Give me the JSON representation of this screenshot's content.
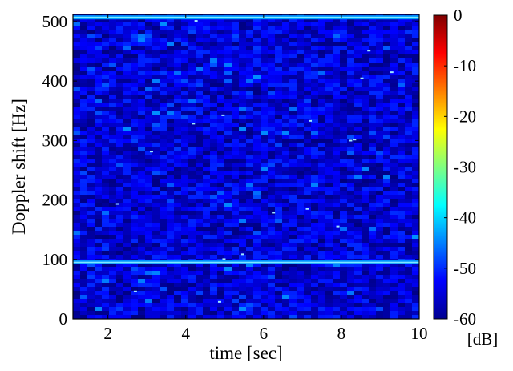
{
  "chart_data": {
    "type": "heatmap",
    "xlabel": "time [sec]",
    "ylabel": "Doppler shift [Hz]",
    "xlim": [
      1.1,
      10
    ],
    "ylim": [
      0,
      512
    ],
    "x_ticks": [
      2,
      4,
      6,
      8,
      10
    ],
    "y_ticks": [
      0,
      100,
      200,
      300,
      400,
      500
    ],
    "colorbar": {
      "label": "[dB]",
      "range": [
        -60,
        0
      ],
      "ticks": [
        0,
        -10,
        -20,
        -30,
        -40,
        -50,
        -60
      ],
      "colormap": "jet"
    },
    "background_level_db": -55,
    "bands": [
      {
        "doppler_hz": 95,
        "level_db": -44
      },
      {
        "doppler_hz": 507,
        "level_db": -43
      }
    ]
  }
}
